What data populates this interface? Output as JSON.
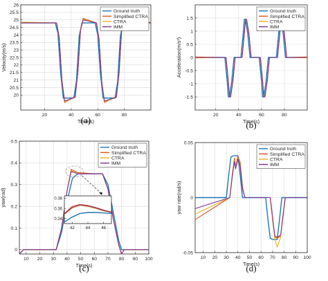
{
  "colors": {
    "ground_truth": "#1f77b4",
    "simplified_ctra": "#d95319",
    "ctra": "#edb120",
    "imm": "#7e2f8e",
    "axes": "#262626",
    "grid": "#d9d9d9",
    "inset_highlight": "#9b9b9b"
  },
  "chart_data": [
    {
      "id": "a",
      "panel_label": "(a)",
      "type": "line",
      "xlabel": "Time(s)",
      "ylabel": "Velocity(m/s)",
      "xlim": [
        2,
        100
      ],
      "ylim": [
        19,
        26
      ],
      "xticks": [
        20,
        40,
        60,
        80
      ],
      "yticks": [
        20,
        20.5,
        21,
        21.5,
        22,
        22.5,
        23,
        23.5,
        24,
        24.5,
        25,
        25.5,
        26
      ],
      "ytick_labels": [
        "20",
        "20.5",
        "21",
        "21.5",
        "22",
        "22.5",
        "23",
        "23.5",
        "24",
        "24.5",
        "25",
        "25.5",
        "26"
      ],
      "grid": true,
      "legend": {
        "entries": [
          "Ground truth",
          "Simplified CTRA",
          "CTRA",
          "IMM"
        ],
        "placement": "top-right"
      },
      "series": [
        {
          "name": "Ground truth",
          "x": [
            2,
            28,
            30,
            32,
            34,
            42,
            44,
            46,
            48,
            58,
            60,
            62,
            64,
            73,
            75,
            77,
            79,
            100
          ],
          "y": [
            24.8,
            24.8,
            24.1,
            21.5,
            19.8,
            19.8,
            21.0,
            23.9,
            24.8,
            24.8,
            24.0,
            21.4,
            19.8,
            19.8,
            20.9,
            23.9,
            24.8,
            24.8
          ]
        },
        {
          "name": "Simplified CTRA",
          "x": [
            2,
            29,
            31,
            33,
            35,
            43,
            45,
            47,
            49,
            59,
            61,
            63,
            65,
            74,
            76,
            78,
            80,
            100
          ],
          "y": [
            24.8,
            24.8,
            23.8,
            21.0,
            19.5,
            19.9,
            21.5,
            24.3,
            25.1,
            24.8,
            23.7,
            20.9,
            19.5,
            19.9,
            21.4,
            24.3,
            25.1,
            24.8
          ]
        },
        {
          "name": "CTRA",
          "x": [
            2,
            29,
            31,
            33,
            35,
            43,
            45,
            47,
            49,
            59,
            61,
            63,
            65,
            74,
            76,
            78,
            80,
            100
          ],
          "y": [
            24.85,
            24.8,
            23.7,
            20.9,
            19.55,
            19.85,
            21.6,
            24.4,
            25.05,
            24.8,
            23.6,
            20.8,
            19.55,
            19.85,
            21.5,
            24.4,
            25.05,
            24.85
          ]
        },
        {
          "name": "IMM",
          "x": [
            2,
            29,
            31,
            33,
            35,
            43,
            45,
            47,
            49,
            59,
            61,
            63,
            65,
            74,
            76,
            78,
            80,
            100
          ],
          "y": [
            24.8,
            24.8,
            23.8,
            21.0,
            19.6,
            19.85,
            21.5,
            24.3,
            25.0,
            24.8,
            23.7,
            20.9,
            19.6,
            19.85,
            21.4,
            24.3,
            25.0,
            24.8
          ]
        }
      ]
    },
    {
      "id": "b",
      "panel_label": "(b)",
      "type": "line",
      "xlabel": "Time(s)",
      "ylabel": "Acceleration(m/s²)",
      "xlim": [
        2,
        100
      ],
      "ylim": [
        -2,
        2
      ],
      "xticks": [
        20,
        40,
        60,
        80
      ],
      "yticks": [
        -1.5,
        -1,
        -0.5,
        0,
        0.5,
        1,
        1.5
      ],
      "ytick_labels": [
        "-1.5",
        "-1",
        "-0.5",
        "0",
        "0.5",
        "1",
        "1.5"
      ],
      "grid": true,
      "legend": {
        "entries": [
          "Ground truth",
          "Simplified CTRA",
          "CTRA",
          "IMM"
        ],
        "placement": "top-right"
      },
      "series": [
        {
          "name": "Ground truth",
          "x": [
            2,
            26,
            28,
            30,
            31,
            32,
            34,
            36,
            40,
            42,
            44,
            45,
            46,
            48,
            50,
            56,
            58,
            60,
            61,
            62,
            64,
            66,
            71,
            73,
            75,
            76,
            77,
            79,
            81,
            100
          ],
          "y": [
            0,
            0,
            0,
            -0.9,
            -1.5,
            -1.5,
            -0.9,
            0,
            0,
            0,
            0.9,
            1.45,
            1.45,
            0.9,
            0,
            0,
            0,
            -0.9,
            -1.5,
            -1.5,
            -0.9,
            0,
            0,
            0,
            0.9,
            1.45,
            1.45,
            0.9,
            0,
            0
          ]
        },
        {
          "name": "Simplified CTRA",
          "x": [
            2,
            27,
            29,
            31,
            32,
            33,
            35,
            37,
            41,
            43,
            45,
            46,
            47,
            49,
            51,
            57,
            59,
            61,
            62,
            63,
            65,
            67,
            72,
            74,
            76,
            77,
            78,
            80,
            82,
            100
          ],
          "y": [
            0.02,
            0,
            0,
            -0.9,
            -1.45,
            -1.5,
            -0.9,
            0,
            0,
            0,
            0.9,
            1.45,
            1.42,
            0.9,
            0,
            0,
            0,
            -0.9,
            -1.45,
            -1.5,
            -0.9,
            0,
            0,
            0,
            0.9,
            1.45,
            1.42,
            0.9,
            0,
            0.02
          ]
        },
        {
          "name": "CTRA",
          "x": [
            2,
            27,
            29,
            31,
            32,
            33,
            35,
            37,
            41,
            43,
            45,
            46,
            47,
            49,
            51,
            57,
            59,
            61,
            62,
            63,
            65,
            67,
            72,
            74,
            76,
            77,
            78,
            80,
            82,
            100
          ],
          "y": [
            -0.02,
            0,
            0,
            -0.95,
            -1.5,
            -1.45,
            -0.95,
            0,
            0,
            0,
            0.95,
            1.4,
            1.45,
            0.95,
            0,
            0,
            0,
            -0.95,
            -1.5,
            -1.45,
            -0.95,
            0,
            0,
            0,
            0.95,
            1.4,
            1.45,
            0.95,
            0,
            -0.02
          ]
        },
        {
          "name": "IMM",
          "x": [
            2,
            27,
            29,
            31,
            32,
            33,
            35,
            37,
            41,
            43,
            45,
            46,
            47,
            49,
            51,
            57,
            59,
            61,
            62,
            63,
            65,
            67,
            72,
            74,
            76,
            77,
            78,
            80,
            82,
            100
          ],
          "y": [
            0,
            0,
            0,
            -0.9,
            -1.5,
            -1.5,
            -0.9,
            0,
            0,
            0,
            0.9,
            1.45,
            1.45,
            0.9,
            0,
            0,
            0,
            -0.9,
            -1.5,
            -1.5,
            -0.9,
            0,
            0,
            0,
            0.9,
            1.45,
            1.45,
            0.9,
            0,
            0
          ]
        }
      ]
    },
    {
      "id": "c",
      "panel_label": "(c)",
      "type": "line",
      "xlabel": "Time(s)",
      "ylabel": "yaw(rad)",
      "xlim": [
        5,
        100
      ],
      "ylim": [
        -0.02,
        0.5
      ],
      "xticks": [
        10,
        20,
        30,
        40,
        50,
        60,
        70,
        80,
        90,
        100
      ],
      "yticks": [
        0,
        0.1,
        0.2,
        0.3,
        0.4,
        0.5
      ],
      "ytick_labels": [
        "0",
        "0.1",
        "0.2",
        "0.3",
        "0.4",
        "0.5"
      ],
      "grid": true,
      "legend": {
        "entries": [
          "Ground truth",
          "Simplified CTRA",
          "CTRA",
          "IMM"
        ],
        "placement": "top-right"
      },
      "series": [
        {
          "name": "Ground truth",
          "x": [
            5,
            8,
            32,
            36,
            40,
            44,
            48,
            60,
            66,
            70,
            74,
            78,
            80,
            82,
            100
          ],
          "y": [
            -0.02,
            0,
            0,
            0.08,
            0.22,
            0.33,
            0.35,
            0.35,
            0.35,
            0.3,
            0.17,
            0.04,
            0,
            0,
            0
          ]
        },
        {
          "name": "Simplified CTRA",
          "x": [
            5,
            8,
            32,
            36,
            40,
            43,
            48,
            60,
            66,
            70,
            74,
            78,
            80,
            82,
            100
          ],
          "y": [
            -0.02,
            0,
            0,
            0.1,
            0.27,
            0.37,
            0.355,
            0.35,
            0.35,
            0.28,
            0.14,
            0.02,
            -0.02,
            0,
            0
          ]
        },
        {
          "name": "CTRA",
          "x": [
            5,
            8,
            32,
            36,
            40,
            43,
            48,
            60,
            66,
            70,
            74,
            78,
            80,
            82,
            100
          ],
          "y": [
            -0.02,
            0,
            0,
            0.1,
            0.27,
            0.365,
            0.35,
            0.35,
            0.35,
            0.28,
            0.14,
            0.02,
            -0.02,
            0,
            0
          ]
        },
        {
          "name": "IMM",
          "x": [
            5,
            8,
            32,
            36,
            40,
            43,
            48,
            60,
            66,
            70,
            74,
            78,
            80,
            82,
            100
          ],
          "y": [
            -0.02,
            0,
            0,
            0.1,
            0.27,
            0.36,
            0.35,
            0.35,
            0.35,
            0.28,
            0.14,
            0.02,
            -0.02,
            0,
            0
          ]
        }
      ],
      "inset": {
        "xlim": [
          41,
          47
        ],
        "ylim": [
          0.33,
          0.385
        ],
        "xticks": [
          42,
          44,
          46
        ],
        "yticks": [
          0.34,
          0.36,
          0.38
        ],
        "ytick_labels": [
          "0.34",
          "0.36",
          "0.38"
        ],
        "series": [
          {
            "name": "Ground truth",
            "x": [
              41,
              42,
              43,
              44,
              45,
              46,
              47
            ],
            "y": [
              0.333,
              0.343,
              0.35,
              0.352,
              0.352,
              0.351,
              0.35
            ]
          },
          {
            "name": "Simplified CTRA",
            "x": [
              41,
              42,
              43,
              44,
              45,
              46,
              47
            ],
            "y": [
              0.35,
              0.364,
              0.368,
              0.366,
              0.362,
              0.357,
              0.353
            ]
          },
          {
            "name": "CTRA",
            "x": [
              41,
              42,
              43,
              44,
              45,
              46,
              47
            ],
            "y": [
              0.348,
              0.361,
              0.366,
              0.364,
              0.36,
              0.355,
              0.352
            ]
          },
          {
            "name": "IMM",
            "x": [
              41,
              42,
              43,
              44,
              45,
              46,
              47
            ],
            "y": [
              0.349,
              0.362,
              0.367,
              0.365,
              0.361,
              0.356,
              0.352
            ]
          }
        ]
      }
    },
    {
      "id": "d",
      "panel_label": "(d)",
      "type": "line",
      "xlabel": "Time(s)",
      "ylabel": "yaw rate(rad/s)",
      "xlim": [
        3,
        100
      ],
      "ylim": [
        -0.05,
        0.05
      ],
      "xticks": [
        10,
        20,
        30,
        40,
        50,
        60,
        70,
        80,
        90,
        100
      ],
      "yticks": [
        -0.05,
        0,
        0.05
      ],
      "ytick_labels": [
        "-0.05",
        "0",
        "0.05"
      ],
      "grid": true,
      "legend": {
        "entries": [
          "Ground truth",
          "Simplified CTRA",
          "CTRA",
          "IMM"
        ],
        "placement": "top-right"
      },
      "series": [
        {
          "name": "Ground truth",
          "x": [
            3,
            30,
            32,
            34,
            36,
            40,
            42,
            44,
            64,
            66,
            68,
            70,
            74,
            76,
            78,
            100
          ],
          "y": [
            0,
            0,
            0.02,
            0.037,
            0.038,
            0.038,
            0.02,
            0,
            0,
            -0.02,
            -0.037,
            -0.038,
            -0.038,
            -0.02,
            0,
            0
          ]
        },
        {
          "name": "Simplified CTRA",
          "x": [
            3,
            33,
            35,
            37,
            38,
            40,
            42,
            44,
            46,
            68,
            70,
            72,
            74,
            77,
            79,
            81,
            100
          ],
          "y": [
            -0.02,
            0,
            0.02,
            0.036,
            0.028,
            0.038,
            0.032,
            0.01,
            0,
            0,
            -0.02,
            -0.036,
            -0.037,
            -0.035,
            -0.018,
            0,
            0
          ]
        },
        {
          "name": "CTRA",
          "x": [
            3,
            33,
            35,
            37,
            38,
            40,
            42,
            44,
            46,
            68,
            70,
            72,
            74,
            77,
            79,
            81,
            100
          ],
          "y": [
            -0.015,
            0,
            0.019,
            0.034,
            0.027,
            0.036,
            0.03,
            0.009,
            0,
            0,
            -0.019,
            -0.038,
            -0.045,
            -0.036,
            -0.017,
            0,
            0
          ]
        },
        {
          "name": "IMM",
          "x": [
            3,
            33,
            35,
            37,
            38,
            40,
            42,
            44,
            46,
            68,
            70,
            72,
            74,
            77,
            79,
            81,
            100
          ],
          "y": [
            -0.01,
            0,
            0.018,
            0.033,
            0.026,
            0.035,
            0.029,
            0.008,
            0,
            0,
            -0.018,
            -0.035,
            -0.036,
            -0.034,
            -0.016,
            0,
            0
          ]
        }
      ]
    }
  ]
}
